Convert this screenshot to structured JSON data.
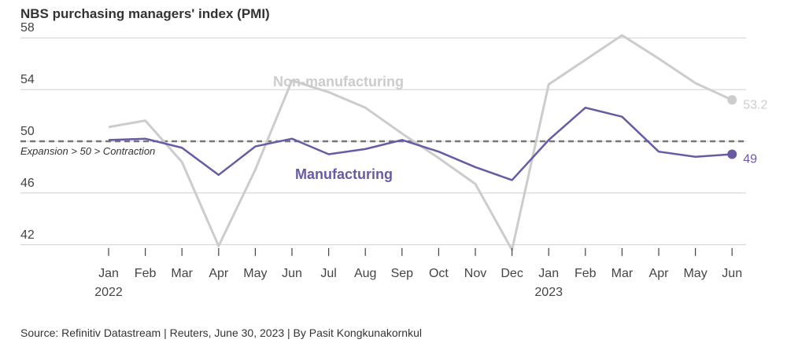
{
  "title": "NBS purchasing managers' index (PMI)",
  "source": "Source: Refinitiv Datastream | Reuters, June 30, 2023 | By Pasit Kongkunakornkul",
  "chart_data": {
    "type": "line",
    "x": [
      "Jan",
      "Feb",
      "Mar",
      "Apr",
      "May",
      "Jun",
      "Jul",
      "Aug",
      "Sep",
      "Oct",
      "Nov",
      "Dec",
      "Jan",
      "Feb",
      "Mar",
      "Apr",
      "May",
      "Jun"
    ],
    "year_labels": [
      {
        "index": 0,
        "label": "2022"
      },
      {
        "index": 12,
        "label": "2023"
      }
    ],
    "yticks": [
      42,
      46,
      50,
      54,
      58
    ],
    "ylim": [
      41.5,
      58.5
    ],
    "threshold": {
      "value": 50,
      "label": "Expansion > 50 > Contraction"
    },
    "series": [
      {
        "name": "Non-manufacturing",
        "color": "#cccccc",
        "values": [
          51.1,
          51.6,
          48.4,
          41.9,
          47.8,
          54.7,
          53.8,
          52.6,
          50.6,
          48.7,
          46.7,
          41.6,
          54.4,
          56.3,
          58.2,
          56.4,
          54.5,
          53.2
        ],
        "end_label": "53.2"
      },
      {
        "name": "Manufacturing",
        "color": "#6a5aa5",
        "values": [
          50.1,
          50.2,
          49.5,
          47.4,
          49.6,
          50.2,
          49.0,
          49.4,
          50.1,
          49.2,
          48.0,
          47.0,
          50.1,
          52.6,
          51.9,
          49.2,
          48.8,
          49.0
        ],
        "end_label": "49"
      }
    ],
    "grid": true
  }
}
